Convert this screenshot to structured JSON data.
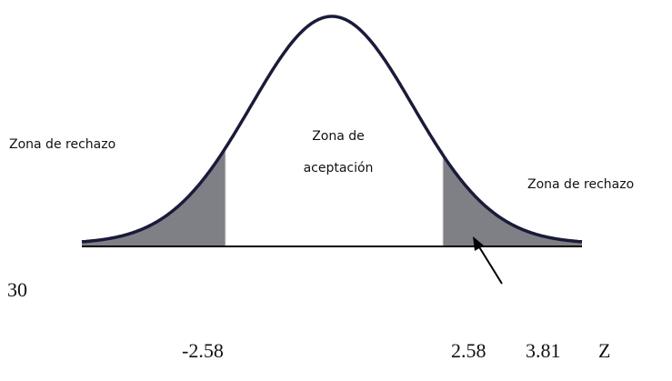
{
  "labels": {
    "left_zone": "Zona de rechazo",
    "center_zone": [
      "Zona de",
      "aceptación"
    ],
    "right_zone": "Zona de rechazo"
  },
  "side_value": "30",
  "axis_labels": [
    "-2.58",
    "2.58",
    "3.81"
  ],
  "axis_name": "Z"
}
